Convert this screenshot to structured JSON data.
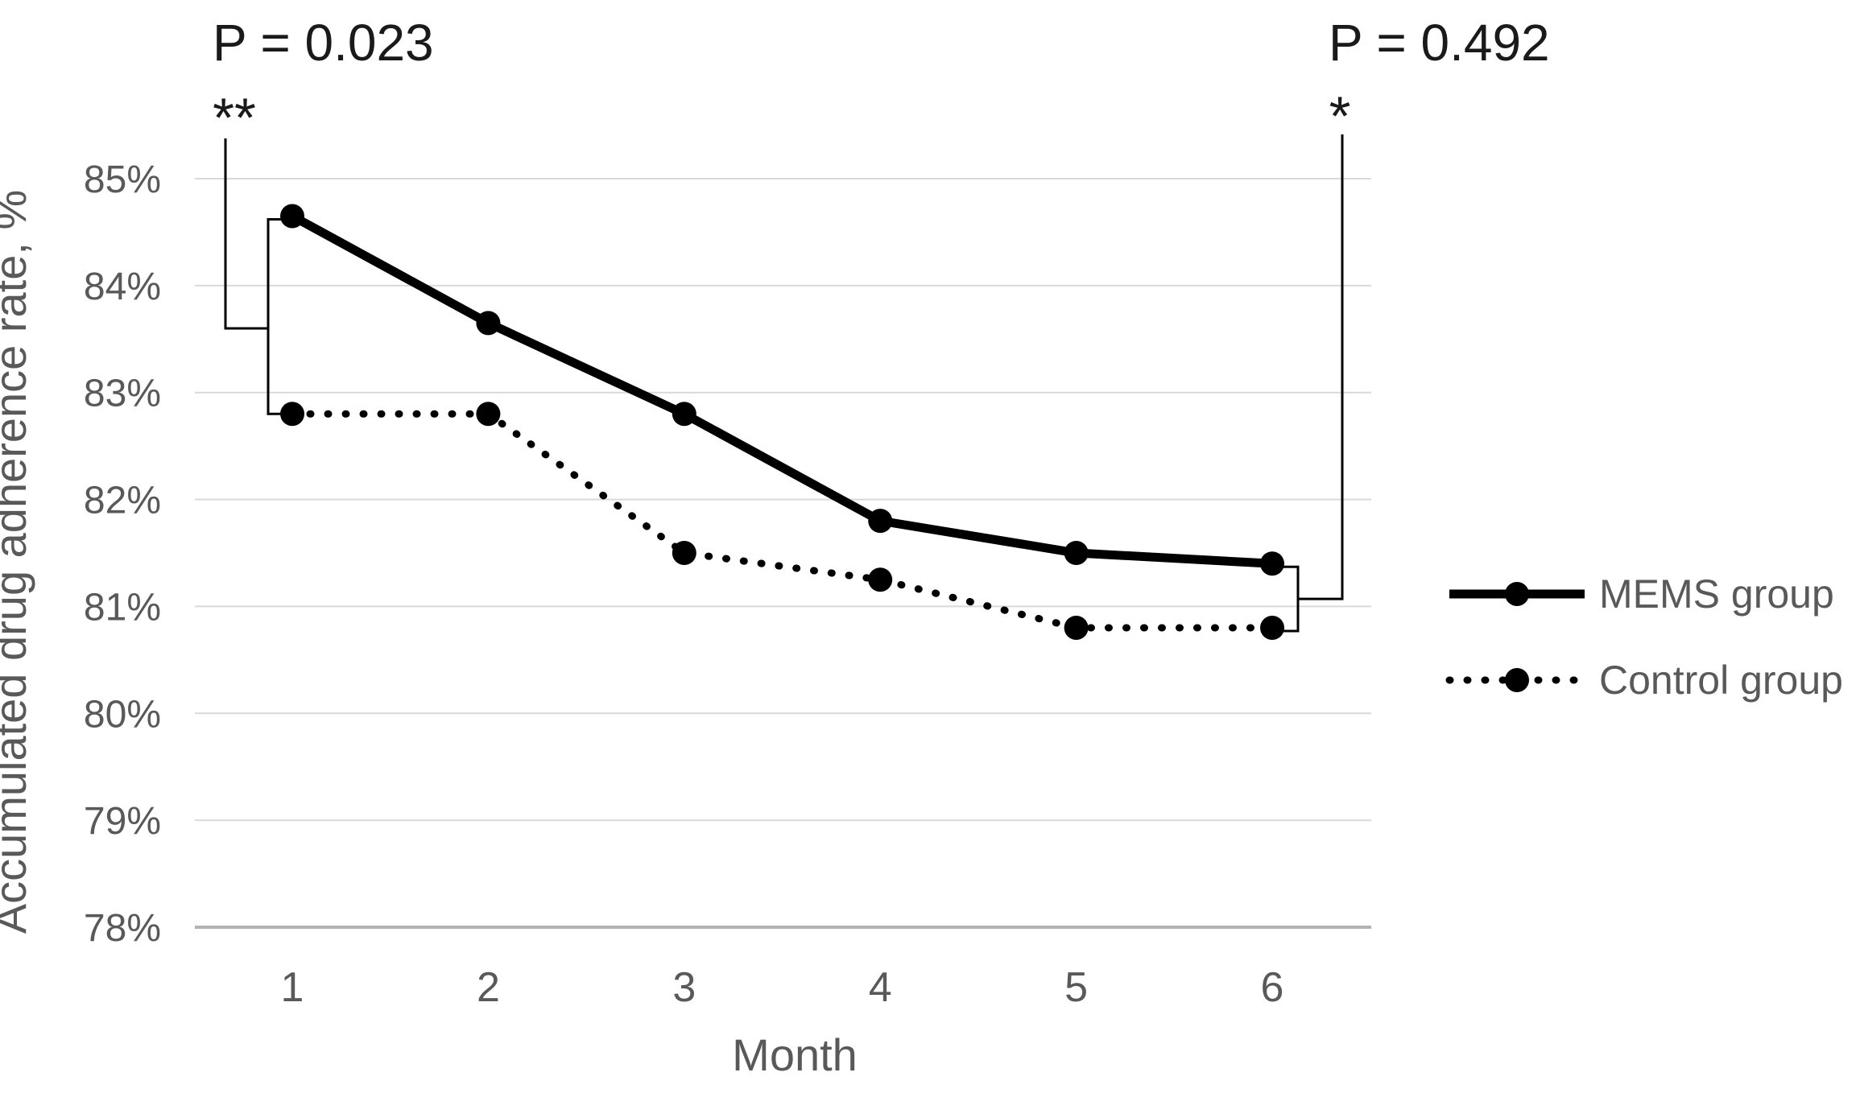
{
  "figure": {
    "background": "#ffffff",
    "description": "Line chart of accumulated drug adherence rate over 6 months for MEMS group vs Control group with significance annotations"
  },
  "colors": {
    "series": "#000000",
    "axis_text": "#595959",
    "gridline": "#d9d9d9",
    "axis_line": "#b3b3b3",
    "annotation_text": "#1a1a1a",
    "bracket_line": "#000000"
  },
  "chart_data": {
    "type": "line",
    "title": "",
    "xlabel": "Month",
    "ylabel": "Accumulated drug adherence rate, %",
    "x": [
      1,
      2,
      3,
      4,
      5,
      6
    ],
    "series": [
      {
        "name": "MEMS group",
        "line_style": "solid",
        "marker": "circle",
        "color": "#000000",
        "values": [
          84.65,
          83.65,
          82.8,
          81.8,
          81.5,
          81.4
        ]
      },
      {
        "name": "Control group",
        "line_style": "dotted",
        "marker": "circle",
        "color": "#000000",
        "values": [
          82.8,
          82.8,
          81.5,
          81.25,
          80.8,
          80.8
        ]
      }
    ],
    "ytick_labels": [
      "85%",
      "84%",
      "83%",
      "82%",
      "81%",
      "80%",
      "79%",
      "78%"
    ],
    "ytick_values": [
      85,
      84,
      83,
      82,
      81,
      80,
      79,
      78
    ],
    "ylim": [
      78,
      85.5
    ],
    "grid": true,
    "legend_position": "right",
    "annotations": [
      {
        "label": "P = 0.023",
        "stars": "**",
        "month": 1,
        "compares": [
          "MEMS group",
          "Control group"
        ]
      },
      {
        "label": "P = 0.492",
        "stars": "*",
        "month": 6,
        "compares": [
          "MEMS group",
          "Control group"
        ]
      }
    ]
  }
}
